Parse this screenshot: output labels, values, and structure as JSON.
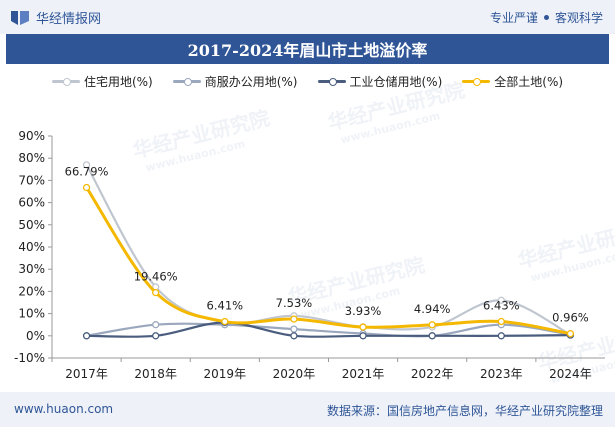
{
  "header": {
    "brand": "华经情报网",
    "tagline_left": "专业严谨",
    "tagline_right": "客观科学"
  },
  "watermark": {
    "text": "华经产业研究院",
    "subtext": "www.huaon.com"
  },
  "chart_data": {
    "type": "line",
    "title": "2017-2024年眉山市土地溢价率",
    "categories": [
      "2017年",
      "2018年",
      "2019年",
      "2020年",
      "2021年",
      "2022年",
      "2023年",
      "2024年"
    ],
    "ylim": [
      -10,
      90
    ],
    "yticks": [
      -10,
      0,
      10,
      20,
      30,
      40,
      50,
      60,
      70,
      80,
      90
    ],
    "ytick_labels": [
      "-10%",
      "0%",
      "10%",
      "20%",
      "30%",
      "40%",
      "50%",
      "60%",
      "70%",
      "80%",
      "90%"
    ],
    "legend_position": "top",
    "grid": false,
    "series": [
      {
        "name": "住宅用地(%)",
        "color": "#c0c6d0",
        "values": [
          77.0,
          22.0,
          6.0,
          9.0,
          4.0,
          4.0,
          16.0,
          0.5
        ]
      },
      {
        "name": "商服办公用地(%)",
        "color": "#9aa7bd",
        "values": [
          0.0,
          5.0,
          5.0,
          3.0,
          1.0,
          0.0,
          5.0,
          0.5
        ]
      },
      {
        "name": "工业仓储用地(%)",
        "color": "#4a5d7e",
        "values": [
          0.0,
          0.0,
          6.0,
          0.0,
          0.0,
          0.0,
          0.0,
          0.3
        ]
      },
      {
        "name": "全部土地(%)",
        "color": "#f5b800",
        "values": [
          66.79,
          19.46,
          6.41,
          7.53,
          3.93,
          4.94,
          6.43,
          0.96
        ]
      }
    ],
    "data_labels": [
      "66.79%",
      "19.46%",
      "6.41%",
      "7.53%",
      "3.93%",
      "4.94%",
      "6.43%",
      "0.96%"
    ]
  },
  "footer": {
    "url": "www.huaon.com",
    "source": "数据来源：国信房地产信息网，华经产业研究院整理"
  }
}
